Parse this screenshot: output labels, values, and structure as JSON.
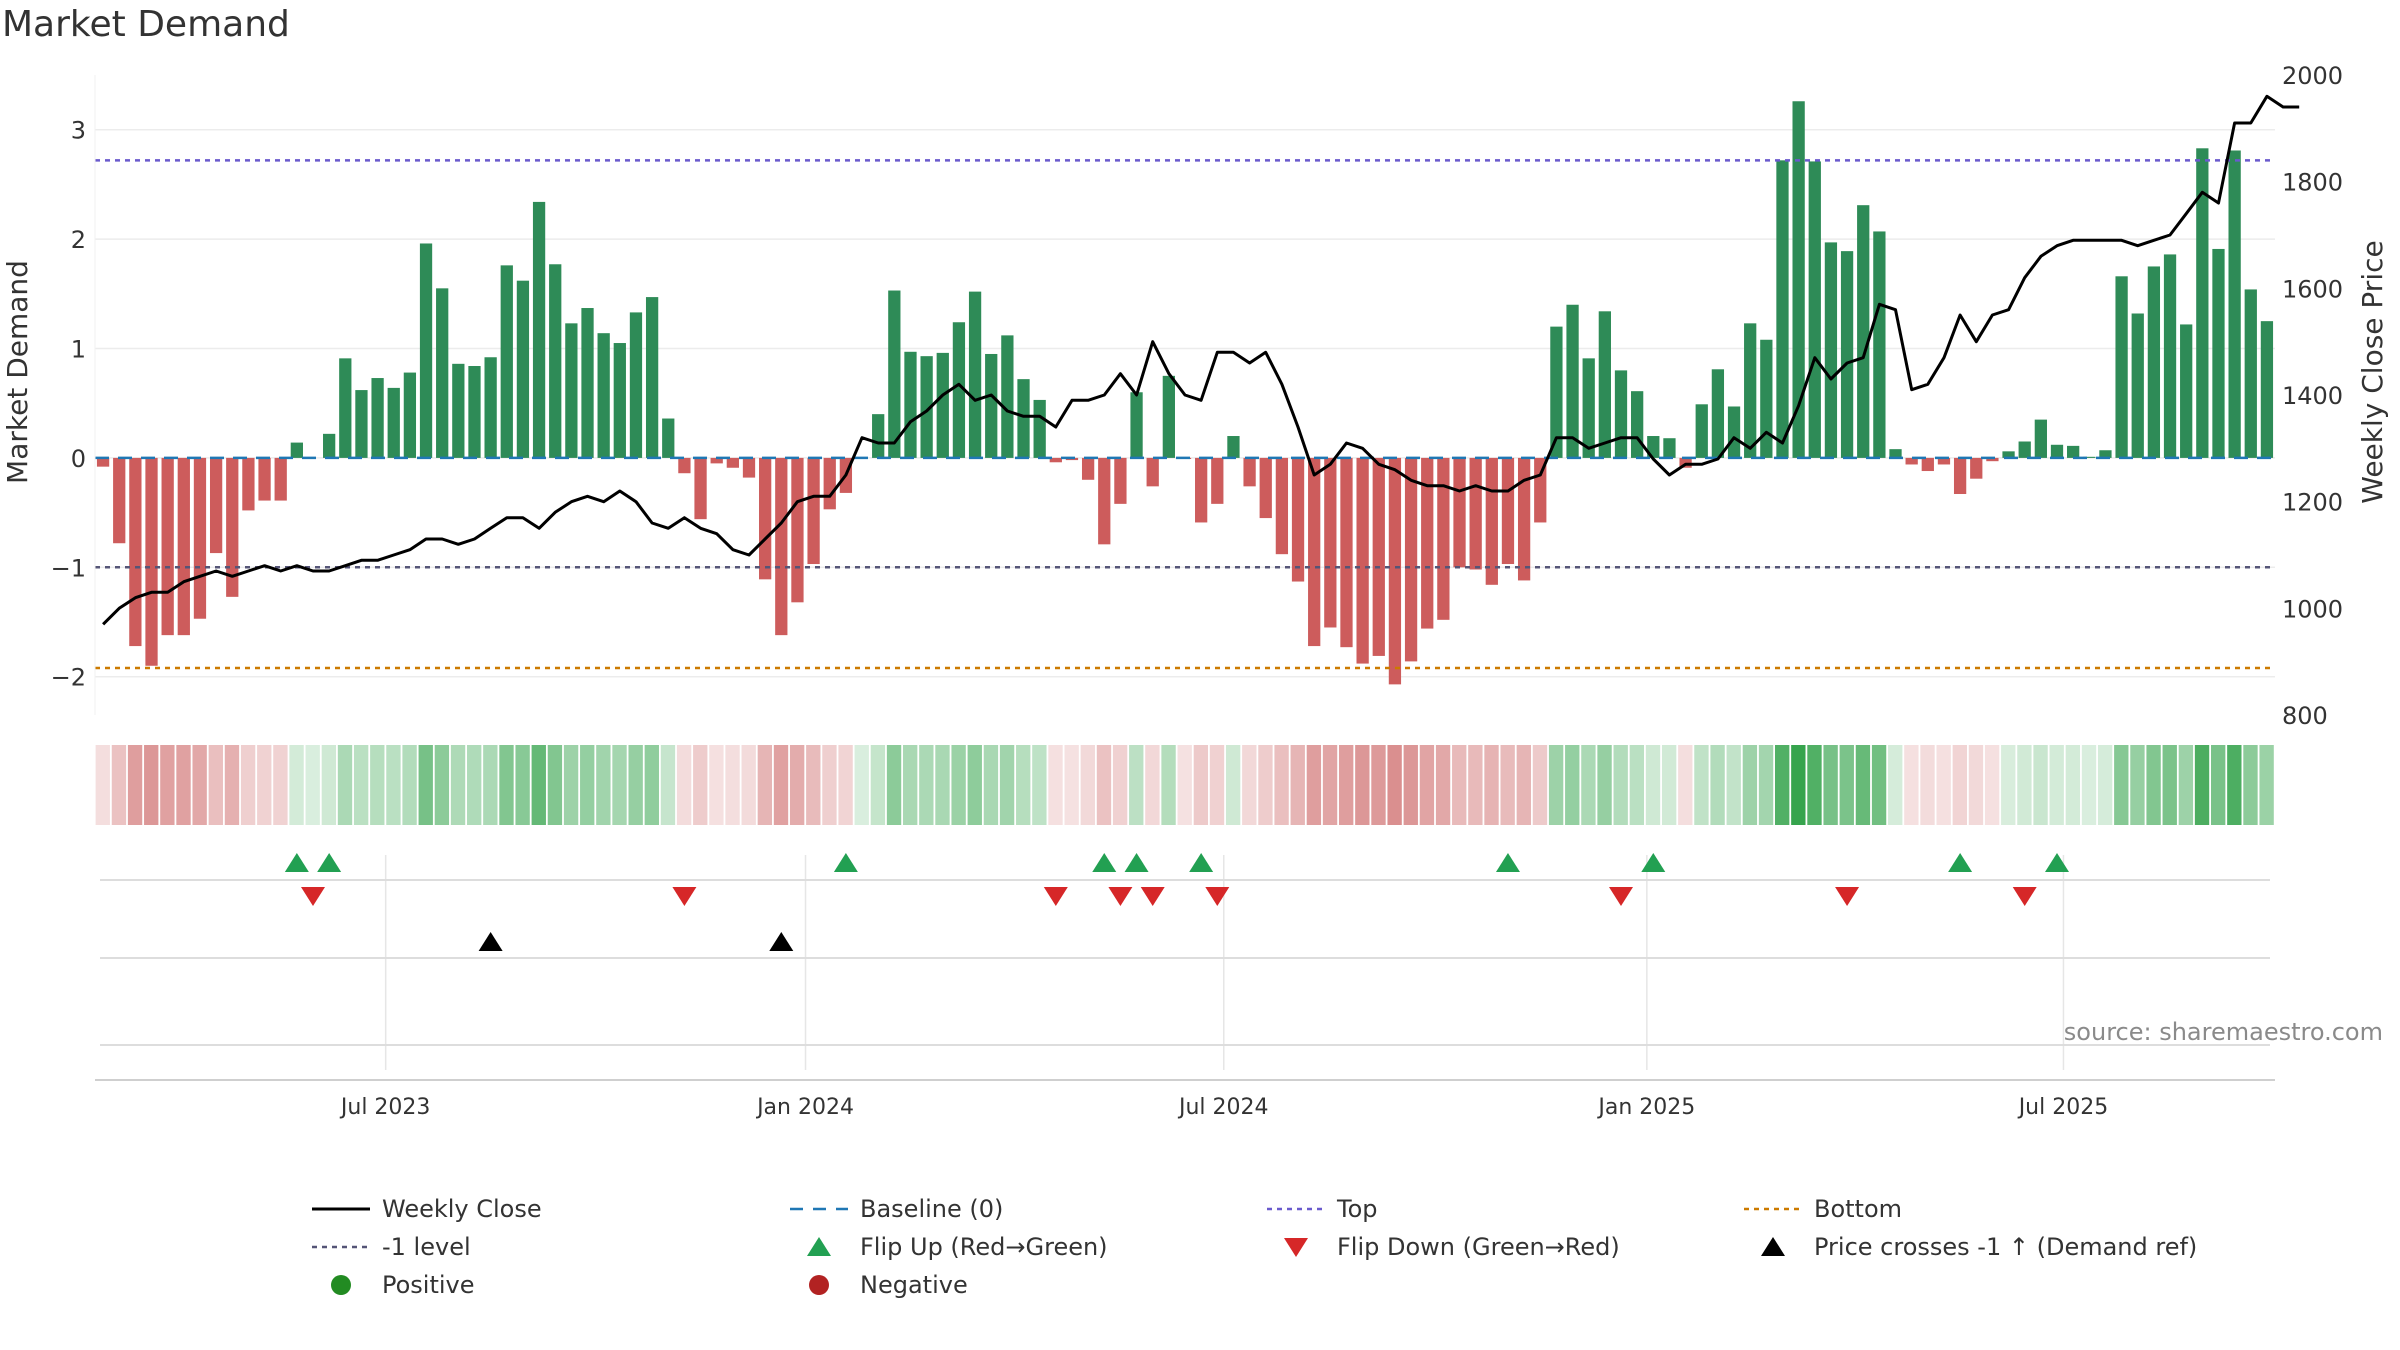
{
  "page": {
    "title": "Market Demand"
  },
  "source_note": "source: sharemaestro.com",
  "colors": {
    "positive_bar": "#2e8b57",
    "negative_bar": "#cd5c5c",
    "price_line": "#000000",
    "baseline": "#1f77b4",
    "top": "#6a5acd",
    "minus_one": "#555577",
    "bottom": "#cc7a00",
    "flip_up": "#22a052",
    "flip_down": "#d62728",
    "cross": "#000000",
    "positive_dot": "#228b22",
    "negative_dot": "#b22222"
  },
  "chart_data": {
    "type": "bar",
    "title": "Market Demand",
    "ylabel": "Market Demand",
    "y2label": "Weekly Close Price",
    "ylim": [
      -2.35,
      3.5
    ],
    "y2lim": [
      800,
      2000
    ],
    "yticks": [
      -2,
      -1,
      0,
      1,
      2,
      3
    ],
    "y2ticks": [
      800,
      1000,
      1200,
      1400,
      1600,
      1800,
      2000
    ],
    "grid": true,
    "x_ticks": [
      {
        "label": "Jul 2023",
        "index": 17.5
      },
      {
        "label": "Jan 2024",
        "index": 43.5
      },
      {
        "label": "Jan 2025",
        "index": 95.6
      },
      {
        "label": "Jul 2024",
        "index": 69.4
      },
      {
        "label": "Jul 2025",
        "index": 121.4
      }
    ],
    "reference_lines": {
      "baseline": 0,
      "top": 2.72,
      "minus_one": -1,
      "bottom": -1.92
    },
    "series": [
      {
        "name": "Market Demand",
        "type": "bar",
        "values": [
          -0.08,
          -0.78,
          -1.72,
          -1.9,
          -1.62,
          -1.62,
          -1.47,
          -0.87,
          -1.27,
          -0.48,
          -0.39,
          -0.39,
          0.14,
          0.0,
          0.22,
          0.91,
          0.62,
          0.73,
          0.64,
          0.78,
          1.96,
          1.55,
          0.86,
          0.84,
          0.92,
          1.76,
          1.62,
          2.34,
          1.77,
          1.23,
          1.37,
          1.14,
          1.05,
          1.33,
          1.47,
          0.36,
          -0.14,
          -0.56,
          -0.05,
          -0.09,
          -0.18,
          -1.11,
          -1.62,
          -1.32,
          -0.97,
          -0.47,
          -0.32,
          0.0,
          0.4,
          1.53,
          0.97,
          0.93,
          0.96,
          1.24,
          1.52,
          0.95,
          1.12,
          0.72,
          0.53,
          -0.04,
          -0.02,
          -0.2,
          -0.79,
          -0.42,
          0.6,
          -0.26,
          0.75,
          -0.01,
          -0.59,
          -0.42,
          0.2,
          -0.26,
          -0.55,
          -0.88,
          -1.13,
          -1.72,
          -1.55,
          -1.73,
          -1.88,
          -1.81,
          -2.07,
          -1.86,
          -1.56,
          -1.48,
          -1.0,
          -1.02,
          -1.16,
          -0.97,
          -1.12,
          -0.59,
          1.2,
          1.4,
          0.91,
          1.34,
          0.8,
          0.61,
          0.2,
          0.18,
          -0.09,
          0.49,
          0.81,
          0.47,
          1.23,
          1.08,
          2.72,
          3.26,
          2.71,
          1.97,
          1.89,
          2.31,
          2.07,
          0.08,
          -0.06,
          -0.12,
          -0.06,
          -0.33,
          -0.19,
          -0.03,
          0.06,
          0.15,
          0.35,
          0.12,
          0.11,
          0.01,
          0.07,
          1.66,
          1.32,
          1.75,
          1.86,
          1.22,
          2.83,
          1.91,
          2.81,
          1.54,
          1.25
        ]
      },
      {
        "name": "Weekly Close",
        "type": "line",
        "axis": "right",
        "values": [
          970,
          1000,
          1020,
          1030,
          1030,
          1050,
          1060,
          1070,
          1060,
          1070,
          1080,
          1070,
          1080,
          1070,
          1070,
          1080,
          1090,
          1090,
          1100,
          1110,
          1130,
          1130,
          1120,
          1130,
          1150,
          1170,
          1170,
          1150,
          1180,
          1200,
          1210,
          1200,
          1220,
          1200,
          1160,
          1150,
          1170,
          1150,
          1140,
          1110,
          1100,
          1130,
          1160,
          1200,
          1210,
          1210,
          1250,
          1320,
          1310,
          1310,
          1350,
          1370,
          1400,
          1420,
          1390,
          1400,
          1370,
          1360,
          1360,
          1340,
          1390,
          1390,
          1400,
          1440,
          1400,
          1500,
          1440,
          1400,
          1390,
          1480,
          1480,
          1460,
          1480,
          1420,
          1340,
          1250,
          1270,
          1310,
          1300,
          1270,
          1260,
          1240,
          1230,
          1230,
          1220,
          1230,
          1220,
          1220,
          1240,
          1250,
          1320,
          1320,
          1300,
          1310,
          1320,
          1320,
          1280,
          1250,
          1270,
          1270,
          1280,
          1320,
          1300,
          1330,
          1310,
          1380,
          1470,
          1430,
          1460,
          1470,
          1570,
          1560,
          1410,
          1420,
          1470,
          1550,
          1500,
          1550,
          1560,
          1620,
          1660,
          1680,
          1690,
          1690,
          1690,
          1690,
          1680,
          1690,
          1700,
          1740,
          1780,
          1760,
          1910,
          1910,
          1960,
          1940,
          1940
        ]
      },
      {
        "name": "Flip Up (Red→Green)",
        "type": "marker",
        "week_index": [
          12,
          14,
          46,
          62,
          64,
          68,
          87,
          96,
          115,
          121
        ]
      },
      {
        "name": "Flip Down (Green→Red)",
        "type": "marker",
        "week_index": [
          13,
          36,
          59,
          63,
          65,
          69,
          94,
          108,
          119
        ]
      },
      {
        "name": "Price crosses -1 ↑ (Demand ref)",
        "type": "marker",
        "week_index": [
          24,
          42
        ]
      }
    ],
    "legend": {
      "placement": "bottom",
      "entries": [
        {
          "label": "Weekly Close",
          "symbol": "line-solid",
          "color": "#000000"
        },
        {
          "label": "Baseline (0)",
          "symbol": "line-dashed",
          "color": "#1f77b4"
        },
        {
          "label": "Top",
          "symbol": "line-dotted",
          "color": "#6a5acd"
        },
        {
          "label": "Bottom",
          "symbol": "line-dotted",
          "color": "#cc7a00"
        },
        {
          "label": "-1 level",
          "symbol": "line-dotted",
          "color": "#555577"
        },
        {
          "label": "Flip Up (Red→Green)",
          "symbol": "triangle-up",
          "color": "#22a052"
        },
        {
          "label": "Flip Down (Green→Red)",
          "symbol": "triangle-down",
          "color": "#d62728"
        },
        {
          "label": "Price crosses -1 ↑ (Demand ref)",
          "symbol": "triangle-up",
          "color": "#000000"
        },
        {
          "label": "Positive",
          "symbol": "dot",
          "color": "#228b22"
        },
        {
          "label": "Negative",
          "symbol": "dot",
          "color": "#b22222"
        }
      ]
    }
  }
}
